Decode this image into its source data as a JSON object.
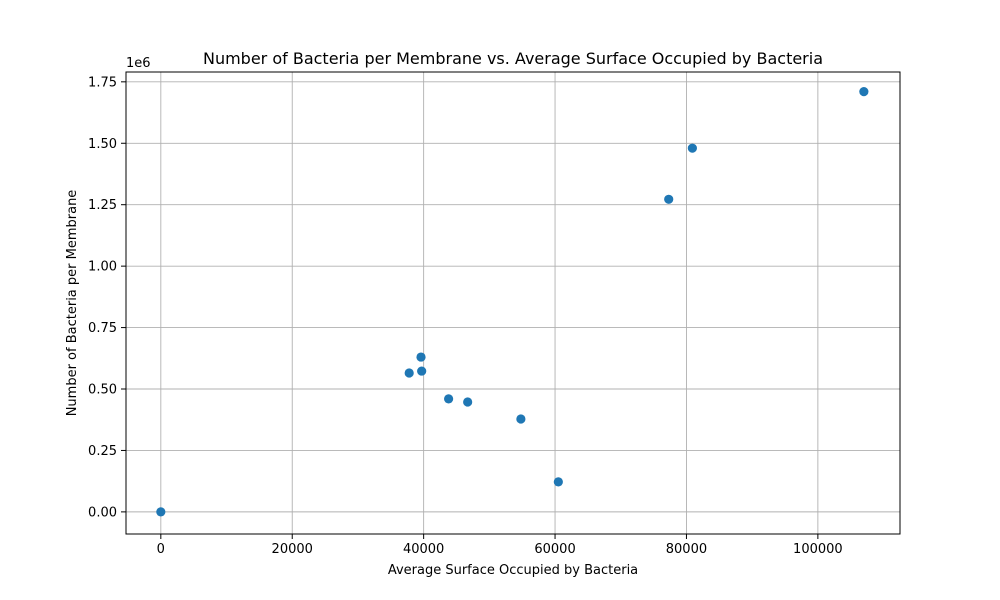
{
  "chart_data": {
    "type": "scatter",
    "title": "Number of Bacteria per Membrane vs. Average Surface Occupied by Bacteria",
    "xlabel": "Average Surface Occupied by Bacteria",
    "ylabel": "Number of Bacteria per Membrane",
    "y_offset_label": "1e6",
    "xlim": [
      -5300,
      112500
    ],
    "ylim": [
      -0.09,
      1.79
    ],
    "y_scale_multiplier": 1000000,
    "x_ticks": [
      0,
      20000,
      40000,
      60000,
      80000,
      100000
    ],
    "x_tick_labels": [
      "0",
      "20000",
      "40000",
      "60000",
      "80000",
      "100000"
    ],
    "y_ticks": [
      0.0,
      0.25,
      0.5,
      0.75,
      1.0,
      1.25,
      1.5,
      1.75
    ],
    "y_tick_labels": [
      "0.00",
      "0.25",
      "0.50",
      "0.75",
      "1.00",
      "1.25",
      "1.50",
      "1.75"
    ],
    "grid": true,
    "colors": {
      "marker": "#1f77b4",
      "grid": "#b0b0b0",
      "axis": "#000000"
    },
    "points": [
      {
        "x": 0,
        "y": 0.0
      },
      {
        "x": 37800,
        "y": 0.565
      },
      {
        "x": 39600,
        "y": 0.63
      },
      {
        "x": 39700,
        "y": 0.573
      },
      {
        "x": 43800,
        "y": 0.46
      },
      {
        "x": 46700,
        "y": 0.447
      },
      {
        "x": 54800,
        "y": 0.378
      },
      {
        "x": 60500,
        "y": 0.122
      },
      {
        "x": 77300,
        "y": 1.272
      },
      {
        "x": 80900,
        "y": 1.48
      },
      {
        "x": 107000,
        "y": 1.71
      }
    ]
  }
}
